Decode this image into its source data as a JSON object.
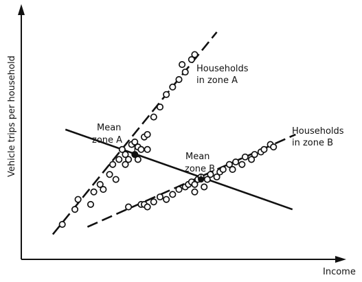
{
  "chart_data": {
    "type": "scatter",
    "xlabel": "Income",
    "ylabel": "Vehicle trips per household",
    "xlim": [
      0,
      100
    ],
    "ylim": [
      0,
      100
    ],
    "grid": false,
    "legend": "none",
    "series": [
      {
        "name": "Households in zone A",
        "points": [
          [
            13,
            14
          ],
          [
            17,
            20
          ],
          [
            18,
            24
          ],
          [
            22,
            22
          ],
          [
            23,
            27
          ],
          [
            25,
            30
          ],
          [
            26,
            28
          ],
          [
            28,
            34
          ],
          [
            29,
            38
          ],
          [
            30,
            32
          ],
          [
            31,
            40
          ],
          [
            32,
            44
          ],
          [
            33,
            38
          ],
          [
            33,
            42
          ],
          [
            34,
            40
          ],
          [
            35,
            46
          ],
          [
            36,
            42
          ],
          [
            36,
            47
          ],
          [
            37,
            40
          ],
          [
            37,
            45
          ],
          [
            38,
            44
          ],
          [
            39,
            49
          ],
          [
            40,
            44
          ],
          [
            40,
            50
          ],
          [
            42,
            57
          ],
          [
            44,
            61
          ],
          [
            46,
            66
          ],
          [
            48,
            69
          ],
          [
            50,
            72
          ],
          [
            51,
            78
          ],
          [
            52,
            75
          ],
          [
            54,
            80
          ],
          [
            55,
            82
          ]
        ],
        "trend": [
          [
            10,
            10
          ],
          [
            62,
            91
          ]
        ]
      },
      {
        "name": "Households in zone B",
        "points": [
          [
            34,
            21
          ],
          [
            38,
            22
          ],
          [
            39,
            22
          ],
          [
            40,
            21
          ],
          [
            42,
            23
          ],
          [
            44,
            25
          ],
          [
            46,
            24
          ],
          [
            48,
            26
          ],
          [
            50,
            28
          ],
          [
            52,
            29
          ],
          [
            53,
            30
          ],
          [
            54,
            31
          ],
          [
            55,
            30
          ],
          [
            55,
            27
          ],
          [
            56,
            32
          ],
          [
            57,
            33
          ],
          [
            58,
            29
          ],
          [
            59,
            32
          ],
          [
            60,
            34
          ],
          [
            62,
            33
          ],
          [
            63,
            35
          ],
          [
            64,
            36
          ],
          [
            66,
            38
          ],
          [
            67,
            36
          ],
          [
            68,
            39
          ],
          [
            70,
            38
          ],
          [
            71,
            41
          ],
          [
            73,
            40
          ],
          [
            74,
            42
          ],
          [
            76,
            43
          ],
          [
            77,
            44
          ],
          [
            79,
            46
          ],
          [
            80,
            45
          ]
        ],
        "trend": [
          [
            21,
            13
          ],
          [
            87,
            50
          ]
        ]
      }
    ],
    "regression_line": [
      [
        14,
        52
      ],
      [
        86,
        20
      ]
    ],
    "means": [
      {
        "label": "Mean zone A",
        "x": 36,
        "y": 42
      },
      {
        "label": "Mean zone B",
        "x": 57,
        "y": 32
      }
    ],
    "annotations": {
      "zone_a": [
        "Households",
        "in zone A"
      ],
      "zone_b": [
        "Households",
        "in zone B"
      ],
      "mean_a": [
        "Mean",
        "zone A"
      ],
      "mean_b": [
        "Mean",
        "zone B"
      ]
    }
  }
}
